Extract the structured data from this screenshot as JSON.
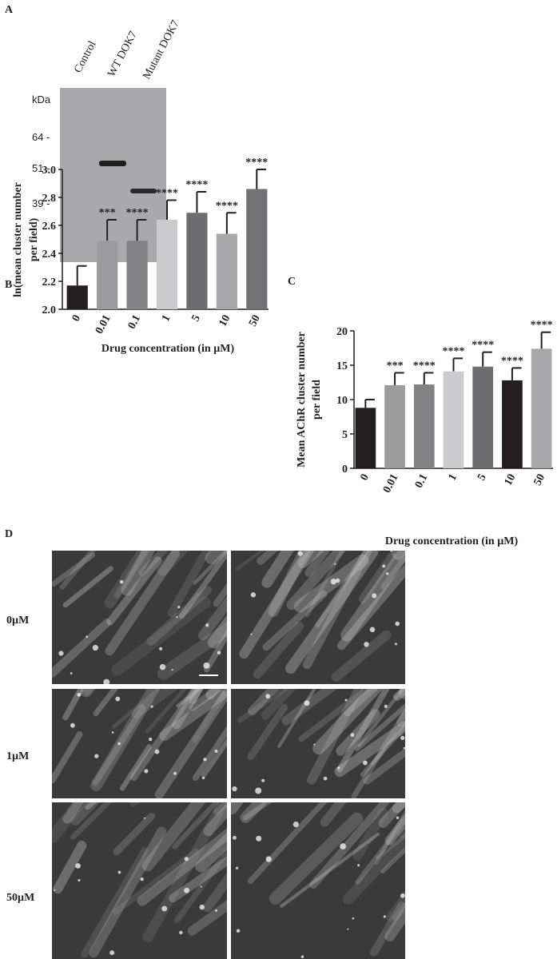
{
  "panel_labels": [
    "A",
    "B",
    "C",
    "D"
  ],
  "blot": {
    "lanes": [
      "Control",
      "WT DOK7",
      "Mutant DOK7"
    ],
    "unit": "kDa",
    "markers": [
      "64 -",
      "51 -",
      "39 -"
    ]
  },
  "chart_data": [
    {
      "type": "bar",
      "y_label": [
        "ln(mean cluster number",
        "per field)"
      ],
      "x_label": "Drug concentration (in µM)",
      "categories": [
        "0",
        "0.01",
        "0.1",
        "1",
        "5",
        "10",
        "50"
      ],
      "values": [
        2.17,
        2.49,
        2.49,
        2.64,
        2.69,
        2.54,
        2.86
      ],
      "errors": [
        0.14,
        0.15,
        0.15,
        0.14,
        0.15,
        0.15,
        0.14
      ],
      "annotations": [
        null,
        "***",
        "****",
        "****",
        "****",
        "****",
        "****"
      ],
      "colors": [
        "#231f20",
        "#9c9c9e",
        "#828284",
        "#cbcbcd",
        "#6e6e70",
        "#a8a8aa",
        "#727274"
      ],
      "ylim": [
        2.0,
        3.0
      ],
      "yticks": [
        {
          "value": 2.0,
          "label": "2.0"
        },
        2.2,
        2.4,
        2.6,
        2.8,
        {
          "value": 3.0,
          "label": "3.0"
        }
      ]
    },
    {
      "type": "bar",
      "y_label": [
        "Mean AChR cluster number",
        "per field"
      ],
      "x_label": "Drug concentration (in µM)",
      "categories": [
        "0",
        "0.01",
        "0.1",
        "1",
        "5",
        "10",
        "50"
      ],
      "values": [
        8.8,
        12.1,
        12.2,
        14.1,
        14.8,
        12.8,
        17.4
      ],
      "errors": [
        1.2,
        1.8,
        1.7,
        1.9,
        2.1,
        1.8,
        2.4
      ],
      "annotations": [
        null,
        "***",
        "****",
        "****",
        "****",
        "****",
        "****"
      ],
      "colors": [
        "#231f20",
        "#9c9c9e",
        "#828284",
        "#cbcbcd",
        "#6e6e70",
        "#231f20",
        "#a8a8aa"
      ],
      "ylim": [
        0,
        20
      ],
      "yticks": [
        0,
        5,
        10,
        15,
        20
      ]
    }
  ],
  "images": {
    "rows": [
      "0µM",
      "1µM",
      "50µM"
    ]
  }
}
